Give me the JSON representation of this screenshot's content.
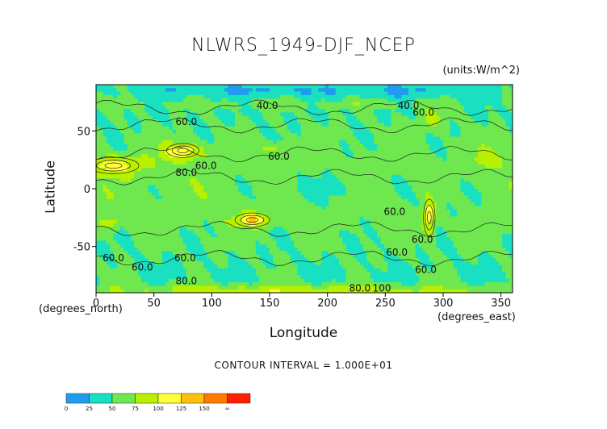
{
  "chart_data": {
    "type": "heatmap",
    "title": "NLWRS_1949-DJF_NCEP",
    "units": "(units:W/m^2)",
    "xlabel": "Longitude",
    "ylabel": "Latitude",
    "x_units": "(degrees_east)",
    "y_units": "(degrees_north)",
    "xlim": [
      0,
      360
    ],
    "ylim": [
      -90,
      90
    ],
    "x_ticks": [
      0,
      50,
      100,
      150,
      200,
      250,
      300,
      350
    ],
    "y_ticks": [
      50,
      0,
      -50
    ],
    "contour_interval_text": "CONTOUR INTERVAL = 1.000E+01",
    "contour_labels": [
      {
        "text": "60.0",
        "lon": 95,
        "lat": 20
      },
      {
        "text": "60.0",
        "lon": 158,
        "lat": 28
      },
      {
        "text": "60.0",
        "lon": 78,
        "lat": 58
      },
      {
        "text": "60.0",
        "lon": 283,
        "lat": 66
      },
      {
        "text": "60.0",
        "lon": 258,
        "lat": -20
      },
      {
        "text": "60.0",
        "lon": 40,
        "lat": -68
      },
      {
        "text": "60.0",
        "lon": 77,
        "lat": -60
      },
      {
        "text": "60.0",
        "lon": 282,
        "lat": -44
      },
      {
        "text": "60.0",
        "lon": 15,
        "lat": -60
      },
      {
        "text": "60.0",
        "lon": 260,
        "lat": -55
      },
      {
        "text": "60.0",
        "lon": 285,
        "lat": -70
      },
      {
        "text": "40.0",
        "lon": 148,
        "lat": 72
      },
      {
        "text": "40.0",
        "lon": 270,
        "lat": 72
      },
      {
        "text": "80.0",
        "lon": 78,
        "lat": 14
      },
      {
        "text": "80.0",
        "lon": 78,
        "lat": -80
      },
      {
        "text": "80.0",
        "lon": 228,
        "lat": -86
      },
      {
        "text": "100",
        "lon": 247,
        "lat": -86
      }
    ],
    "colorbar": {
      "colors": [
        "#1f9cf0",
        "#19e0c0",
        "#6ee84e",
        "#b8f000",
        "#ffff3c",
        "#ffc20a",
        "#ff7c00",
        "#ff1f00"
      ],
      "tick_labels": [
        "0",
        "25",
        "50",
        "75",
        "100",
        "125",
        "150",
        "∞"
      ]
    }
  }
}
